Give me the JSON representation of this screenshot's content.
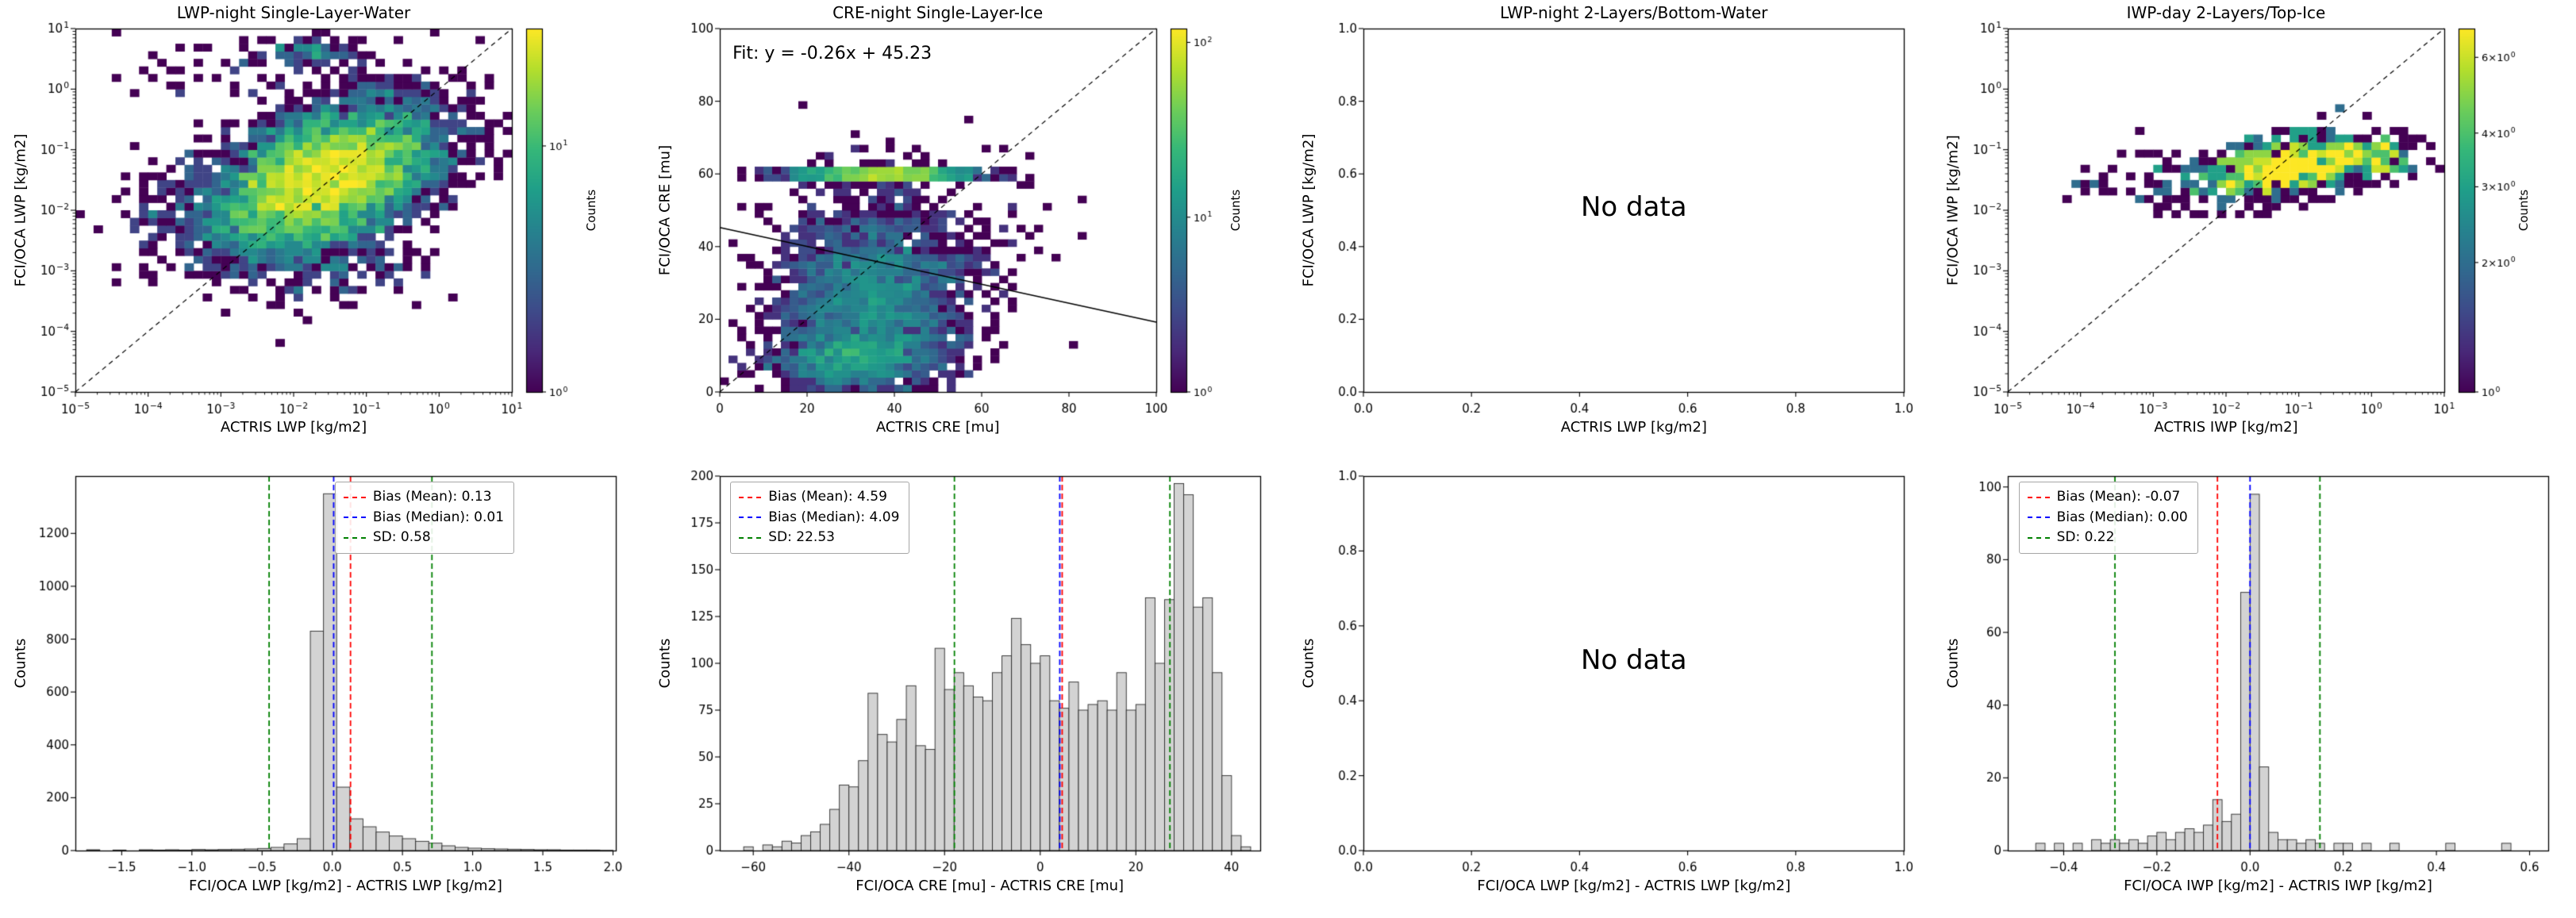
{
  "figure": {
    "background": "#ffffff"
  },
  "colors": {
    "mean": "#ff0000",
    "median": "#0000ff",
    "sd": "#008000",
    "hist_fill": "#d3d3d3",
    "hist_edge": "#2a2a2a",
    "identity": "#000000",
    "fit": "#000000",
    "axes": "#000000"
  },
  "colormap": {
    "name": "viridis",
    "stops": [
      [
        68,
        1,
        84
      ],
      [
        72,
        40,
        120
      ],
      [
        62,
        74,
        137
      ],
      [
        49,
        104,
        142
      ],
      [
        38,
        130,
        142
      ],
      [
        31,
        158,
        137
      ],
      [
        53,
        183,
        121
      ],
      [
        109,
        205,
        89
      ],
      [
        180,
        222,
        44
      ],
      [
        253,
        231,
        37
      ]
    ]
  },
  "chart_data": [
    {
      "type": "heatmap",
      "title": "LWP-night Single-Layer-Water",
      "xlabel": "ACTRIS LWP [kg/m2]",
      "ylabel": "FCI/OCA LWP [kg/m2]",
      "scale": "log",
      "xlim": [
        -5,
        1
      ],
      "ylim": [
        -5,
        1
      ],
      "xticks": [
        -5,
        -4,
        -3,
        -2,
        -1,
        0,
        1
      ],
      "yticks": [
        -5,
        -4,
        -3,
        -2,
        -1,
        0,
        1
      ],
      "identity_line": true,
      "colorbar": {
        "label": "Counts",
        "vmin": 1,
        "vmax": 30,
        "ticks": [
          {
            "mantissa": 1,
            "exp": 1
          },
          {
            "mantissa": 1,
            "exp": 0
          }
        ]
      },
      "bins": 48,
      "seed": 7,
      "clusters": [
        {
          "cx": -1.55,
          "cy": -1.45,
          "sx": 0.8,
          "sy": 0.62,
          "corr": 0.45,
          "n": 5200
        },
        {
          "cx": -1.6,
          "cy": -2.9,
          "sx": 0.7,
          "sy": 0.35,
          "corr": 0,
          "n": 150
        },
        {
          "cx": -3.6,
          "cy": -1.8,
          "sx": 0.4,
          "sy": 0.5,
          "corr": 0,
          "n": 70
        },
        {
          "cx": -1.8,
          "cy": 0.62,
          "sx": 0.35,
          "sy": 0.1,
          "corr": 0,
          "n": 70
        },
        {
          "cx": -2.6,
          "cy": 0.4,
          "sx": 1.0,
          "sy": 0.3,
          "corr": 0,
          "n": 60
        }
      ]
    },
    {
      "type": "heatmap",
      "title": "CRE-night Single-Layer-Ice",
      "xlabel": "ACTRIS CRE [mu]",
      "ylabel": "FCI/OCA CRE [mu]",
      "scale": "linear",
      "xlim": [
        0,
        100
      ],
      "ylim": [
        0,
        100
      ],
      "xticks": [
        0,
        20,
        40,
        60,
        80,
        100
      ],
      "yticks": [
        0,
        20,
        40,
        60,
        80,
        100
      ],
      "xtick_decimals": 0,
      "ytick_decimals": 0,
      "identity_line": true,
      "fit_line": {
        "slope": -0.26,
        "intercept": 45.23
      },
      "annotation": {
        "text": "Fit: y = -0.26x + 45.23",
        "x": 3,
        "y": 93
      },
      "colorbar": {
        "label": "Counts",
        "vmin": 1,
        "vmax": 120,
        "ticks": [
          {
            "mantissa": 1,
            "exp": 2
          },
          {
            "mantissa": 1,
            "exp": 1
          },
          {
            "mantissa": 1,
            "exp": 0
          }
        ]
      },
      "bins": 50,
      "seed": 11,
      "clusters": [
        {
          "cx": 35,
          "cy": 26,
          "sx": 11,
          "sy": 14,
          "corr": 0,
          "n": 2600
        },
        {
          "cx": 30,
          "cy": 9,
          "sx": 9,
          "sy": 4,
          "corr": 0,
          "n": 800
        },
        {
          "cx": 38,
          "cy": 60,
          "sx": 10,
          "sy": 0.8,
          "corr": 0,
          "n": 1500
        },
        {
          "cx": 66,
          "cy": 38,
          "sx": 9,
          "sy": 12,
          "corr": 0,
          "n": 40
        }
      ]
    },
    {
      "type": "empty",
      "title": "LWP-night 2-Layers/Bottom-Water",
      "xlabel": "ACTRIS LWP [kg/m2]",
      "ylabel": "FCI/OCA LWP [kg/m2]",
      "no_data": "No data",
      "scale": "linear",
      "xlim": [
        0,
        1
      ],
      "ylim": [
        0,
        1
      ],
      "xticks": [
        0,
        0.2,
        0.4,
        0.6,
        0.8,
        1
      ],
      "yticks": [
        0,
        0.2,
        0.4,
        0.6,
        0.8,
        1
      ],
      "xtick_decimals": 1,
      "ytick_decimals": 1
    },
    {
      "type": "heatmap",
      "title": "IWP-day 2-Layers/Top-Ice",
      "xlabel": "ACTRIS IWP [kg/m2]",
      "ylabel": "FCI/OCA IWP [kg/m2]",
      "scale": "log",
      "xlim": [
        -5,
        1
      ],
      "ylim": [
        -5,
        1
      ],
      "xticks": [
        -5,
        -4,
        -3,
        -2,
        -1,
        0,
        1
      ],
      "yticks": [
        -5,
        -4,
        -3,
        -2,
        -1,
        0,
        1
      ],
      "identity_line": true,
      "colorbar": {
        "label": "Counts",
        "vmin": 1,
        "vmax": 7,
        "ticks": [
          {
            "mantissa": 6,
            "exp": 0
          },
          {
            "mantissa": 4,
            "exp": 0
          },
          {
            "mantissa": 3,
            "exp": 0
          },
          {
            "mantissa": 2,
            "exp": 0
          },
          {
            "mantissa": 1,
            "exp": 0
          }
        ]
      },
      "bins": 48,
      "seed": 23,
      "clusters": [
        {
          "cx": -1.15,
          "cy": -1.28,
          "sx": 0.6,
          "sy": 0.26,
          "corr": 0.35,
          "n": 650
        },
        {
          "cx": 0.05,
          "cy": -1.15,
          "sx": 0.28,
          "sy": 0.18,
          "corr": 0,
          "n": 90
        },
        {
          "cx": -2.6,
          "cy": -1.55,
          "sx": 0.5,
          "sy": 0.27,
          "corr": 0,
          "n": 60
        },
        {
          "cx": -3.85,
          "cy": -1.65,
          "sx": 0.2,
          "sy": 0.17,
          "corr": 0,
          "n": 12
        }
      ]
    },
    {
      "type": "histogram",
      "title": "",
      "xlabel": "FCI/OCA LWP [kg/m2] - ACTRIS LWP [kg/m2]",
      "ylabel": "Counts",
      "scale": "linear",
      "xlim": [
        -1.83,
        2.02
      ],
      "ylim": [
        0,
        1417
      ],
      "xticks": [
        -1.5,
        -1,
        -0.5,
        0,
        0.5,
        1,
        1.5,
        2
      ],
      "yticks": [
        0,
        200,
        400,
        600,
        800,
        1000,
        1200
      ],
      "xtick_decimals": 1,
      "ytick_decimals": 0,
      "bin_start": -1.75,
      "bin_width": 0.09375,
      "counts": [
        3,
        0,
        2,
        0,
        3,
        2,
        3,
        2,
        4,
        3,
        4,
        5,
        6,
        8,
        12,
        25,
        45,
        830,
        1350,
        240,
        120,
        90,
        70,
        55,
        45,
        35,
        28,
        18,
        12,
        9,
        7,
        6,
        5,
        4,
        3,
        3,
        2,
        2,
        2,
        1
      ],
      "stats": {
        "mean": 0.13,
        "median": 0.01,
        "sd": 0.58,
        "sd_lines": [
          -0.45,
          0.71
        ]
      },
      "legend": [
        "Bias (Mean): 0.13",
        "Bias (Median): 0.01",
        "SD: 0.58"
      ],
      "legend_anchor_x": 0.48
    },
    {
      "type": "histogram",
      "title": "",
      "xlabel": "FCI/OCA CRE [mu] - ACTRIS CRE [mu]",
      "ylabel": "Counts",
      "scale": "linear",
      "xlim": [
        -67,
        46
      ],
      "ylim": [
        0,
        200
      ],
      "xticks": [
        -60,
        -40,
        -20,
        0,
        20,
        40
      ],
      "yticks": [
        0,
        25,
        50,
        75,
        100,
        125,
        150,
        175,
        200
      ],
      "xtick_decimals": 0,
      "ytick_decimals": 0,
      "bin_start": -64,
      "bin_width": 2,
      "counts": [
        0,
        2,
        0,
        3,
        2,
        5,
        4,
        8,
        10,
        14,
        22,
        35,
        34,
        48,
        84,
        62,
        58,
        70,
        88,
        56,
        54,
        108,
        86,
        95,
        88,
        82,
        80,
        95,
        104,
        124,
        110,
        100,
        104,
        80,
        76,
        90,
        75,
        78,
        80,
        75,
        95,
        75,
        78,
        135,
        100,
        134,
        196,
        190,
        130,
        135,
        95,
        40,
        8,
        2
      ],
      "stats": {
        "mean": 4.59,
        "median": 4.09,
        "sd": 22.53,
        "sd_lines": [
          -17.94,
          27.12
        ]
      },
      "legend": [
        "Bias (Mean): 4.59",
        "Bias (Median): 4.09",
        "SD: 22.53"
      ],
      "legend_anchor_x": 0.02
    },
    {
      "type": "empty",
      "title": "",
      "xlabel": "FCI/OCA LWP [kg/m2] - ACTRIS LWP [kg/m2]",
      "ylabel": "Counts",
      "no_data": "No data",
      "scale": "linear",
      "xlim": [
        0,
        1
      ],
      "ylim": [
        0,
        1
      ],
      "xticks": [
        0,
        0.2,
        0.4,
        0.6,
        0.8,
        1
      ],
      "yticks": [
        0,
        0.2,
        0.4,
        0.6,
        0.8,
        1
      ],
      "xtick_decimals": 1,
      "ytick_decimals": 1
    },
    {
      "type": "histogram",
      "title": "",
      "xlabel": "FCI/OCA IWP [kg/m2] - ACTRIS IWP [kg/m2]",
      "ylabel": "Counts",
      "scale": "linear",
      "xlim": [
        -0.52,
        0.64
      ],
      "ylim": [
        0,
        103
      ],
      "xticks": [
        -0.4,
        -0.2,
        0,
        0.2,
        0.4,
        0.6
      ],
      "yticks": [
        0,
        20,
        40,
        60,
        80,
        100
      ],
      "xtick_decimals": 1,
      "ytick_decimals": 0,
      "bin_start": -0.46,
      "bin_width": 0.02,
      "counts": [
        2,
        0,
        2,
        0,
        2,
        0,
        3,
        2,
        3,
        2,
        3,
        2,
        4,
        5,
        3,
        5,
        6,
        5,
        7,
        14,
        8,
        10,
        71,
        98,
        23,
        5,
        3,
        3,
        2,
        3,
        2,
        0,
        2,
        2,
        0,
        2,
        0,
        0,
        2,
        0,
        0,
        0,
        0,
        0,
        2,
        0,
        0,
        0,
        0,
        0,
        2,
        0,
        0,
        0
      ],
      "stats": {
        "mean": -0.07,
        "median": 0,
        "sd": 0.22,
        "sd_lines": [
          -0.29,
          0.15
        ]
      },
      "legend": [
        "Bias (Mean): -0.07",
        "Bias (Median): 0.00",
        "SD: 0.22"
      ],
      "legend_anchor_x": 0.02
    }
  ]
}
